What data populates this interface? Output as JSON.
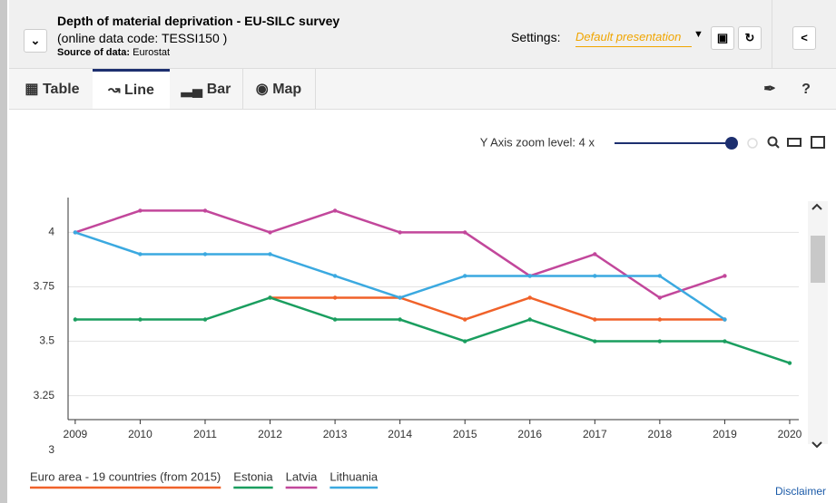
{
  "header": {
    "title": "Depth of material deprivation - EU-SILC survey",
    "subtitle": "(online data code: TESSI150 )",
    "source_label": "Source of data:",
    "source": "Eurostat",
    "settings_label": "Settings:",
    "settings_value": "Default presentation"
  },
  "tabs": [
    "Table",
    "Line",
    "Bar",
    "Map"
  ],
  "zoom_label": "Y Axis zoom level: 4 x",
  "disclaimer": "Disclaimer",
  "chart_data": {
    "type": "line",
    "x": [
      2009,
      2010,
      2011,
      2012,
      2013,
      2014,
      2015,
      2016,
      2017,
      2018,
      2019,
      2020
    ],
    "xlim": [
      2008.89,
      2020.14
    ],
    "ylim": [
      3.14,
      4.16
    ],
    "yticks": [
      3,
      3.25,
      3.5,
      3.75,
      4
    ],
    "grid": true,
    "series": [
      {
        "name": "Euro area - 19 countries (from 2015)",
        "color": "#f0622a",
        "values": [
          null,
          null,
          null,
          3.7,
          3.7,
          3.7,
          3.6,
          3.7,
          3.6,
          3.6,
          3.6,
          null
        ]
      },
      {
        "name": "Estonia",
        "color": "#1a9e5f",
        "values": [
          3.6,
          3.6,
          3.6,
          3.7,
          3.6,
          3.6,
          3.5,
          3.6,
          3.5,
          3.5,
          3.5,
          3.4
        ]
      },
      {
        "name": "Latvia",
        "color": "#c2479b",
        "values": [
          4.0,
          4.1,
          4.1,
          4.0,
          4.1,
          4.0,
          4.0,
          3.8,
          3.9,
          3.7,
          3.8,
          null
        ]
      },
      {
        "name": "Lithuania",
        "color": "#3ba9e0",
        "values": [
          4.0,
          3.9,
          3.9,
          3.9,
          3.8,
          3.7,
          3.8,
          3.8,
          3.8,
          3.8,
          3.6,
          null
        ]
      }
    ]
  }
}
